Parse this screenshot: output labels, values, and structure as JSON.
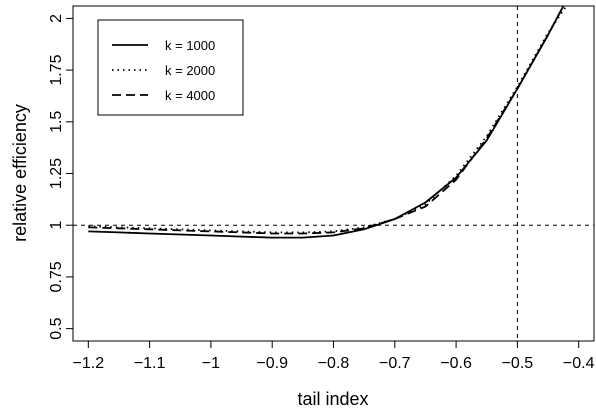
{
  "chart_data": {
    "type": "line",
    "title": "",
    "xlabel": "tail index",
    "ylabel": "relative efficiency",
    "xlim": [
      -1.225,
      -0.375
    ],
    "ylim": [
      0.44,
      2.06
    ],
    "x_ticks": [
      -1.2,
      -1.1,
      -1.0,
      -0.9,
      -0.8,
      -0.7,
      -0.6,
      -0.5,
      -0.4
    ],
    "x_tick_labels": [
      "−1.2",
      "−1.1",
      "−1",
      "−0.9",
      "−0.8",
      "−0.7",
      "−0.6",
      "−0.5",
      "−0.4"
    ],
    "y_ticks": [
      0.5,
      0.75,
      1.0,
      1.25,
      1.5,
      1.75,
      2.0
    ],
    "y_tick_labels": [
      "0.5",
      "0.75",
      "1",
      "1.25",
      "1.5",
      "1.75",
      "2"
    ],
    "reference_lines": [
      {
        "orientation": "horizontal",
        "value": 1.0,
        "style": "dashed"
      },
      {
        "orientation": "vertical",
        "value": -0.5,
        "style": "dashed"
      }
    ],
    "legend_position": "top-left",
    "grid": false,
    "series": [
      {
        "name": "k = 1000",
        "style": "solid",
        "x": [
          -1.2,
          -1.15,
          -1.1,
          -1.05,
          -1.0,
          -0.95,
          -0.9,
          -0.85,
          -0.8,
          -0.75,
          -0.7,
          -0.65,
          -0.6,
          -0.55,
          -0.5,
          -0.45,
          -0.425
        ],
        "y": [
          0.97,
          0.965,
          0.96,
          0.955,
          0.95,
          0.945,
          0.94,
          0.94,
          0.95,
          0.98,
          1.03,
          1.11,
          1.23,
          1.41,
          1.66,
          1.92,
          2.06
        ]
      },
      {
        "name": "k = 2000",
        "style": "dotted",
        "x": [
          -1.2,
          -1.15,
          -1.1,
          -1.05,
          -1.0,
          -0.95,
          -0.9,
          -0.85,
          -0.8,
          -0.75,
          -0.7,
          -0.65,
          -0.6,
          -0.55,
          -0.5,
          -0.45,
          -0.42
        ],
        "y": [
          0.995,
          0.99,
          0.985,
          0.98,
          0.975,
          0.97,
          0.965,
          0.965,
          0.97,
          0.99,
          1.03,
          1.1,
          1.24,
          1.43,
          1.67,
          1.93,
          2.06
        ]
      },
      {
        "name": "k = 4000",
        "style": "dashed",
        "x": [
          -1.2,
          -1.15,
          -1.1,
          -1.05,
          -1.0,
          -0.95,
          -0.9,
          -0.85,
          -0.8,
          -0.75,
          -0.7,
          -0.65,
          -0.6,
          -0.55,
          -0.5,
          -0.45,
          -0.425
        ],
        "y": [
          0.99,
          0.985,
          0.98,
          0.975,
          0.97,
          0.965,
          0.96,
          0.96,
          0.965,
          0.985,
          1.03,
          1.09,
          1.22,
          1.42,
          1.66,
          1.92,
          2.06
        ]
      }
    ]
  }
}
